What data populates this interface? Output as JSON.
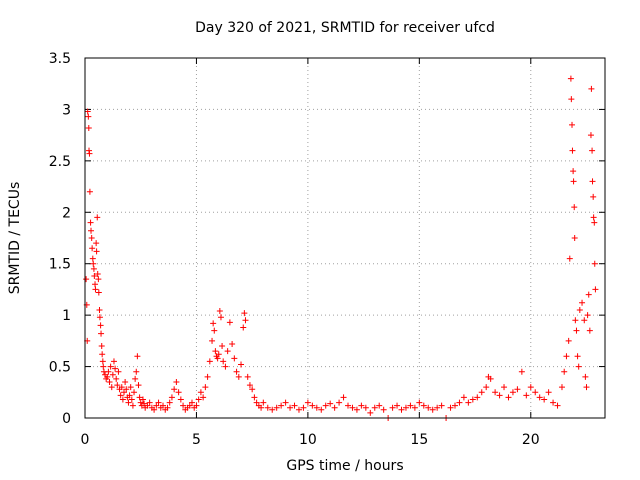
{
  "chart_data": {
    "type": "scatter",
    "title": "Day 320 of 2021, SRMTID for receiver ufcd",
    "xlabel": "GPS time / hours",
    "ylabel": "SRMTID / TECUs",
    "xlim": [
      0,
      23.33
    ],
    "ylim": [
      0,
      3.5
    ],
    "x_ticks": [
      0,
      5,
      10,
      15,
      20
    ],
    "x_tick_labels": [
      "0",
      "5",
      "10",
      "15",
      "20"
    ],
    "y_ticks": [
      0,
      0.5,
      1,
      1.5,
      2,
      2.5,
      3,
      3.5
    ],
    "y_tick_labels": [
      "0",
      "0.5",
      "1",
      "1.5",
      "2",
      "2.5",
      "3",
      "3.5"
    ],
    "grid": true,
    "marker": "+",
    "color": "#ff0000",
    "series": [
      {
        "name": "SRMTID",
        "points": [
          [
            0.05,
            1.35
          ],
          [
            0.08,
            1.1
          ],
          [
            0.1,
            0.75
          ],
          [
            0.12,
            2.98
          ],
          [
            0.15,
            2.93
          ],
          [
            0.17,
            2.82
          ],
          [
            0.18,
            2.6
          ],
          [
            0.2,
            2.57
          ],
          [
            0.22,
            2.2
          ],
          [
            0.25,
            1.9
          ],
          [
            0.27,
            1.82
          ],
          [
            0.3,
            1.75
          ],
          [
            0.32,
            1.65
          ],
          [
            0.35,
            1.55
          ],
          [
            0.37,
            1.5
          ],
          [
            0.4,
            1.45
          ],
          [
            0.42,
            1.38
          ],
          [
            0.45,
            1.3
          ],
          [
            0.47,
            1.25
          ],
          [
            0.5,
            1.7
          ],
          [
            0.52,
            1.62
          ],
          [
            0.55,
            1.95
          ],
          [
            0.57,
            1.4
          ],
          [
            0.6,
            1.35
          ],
          [
            0.62,
            1.22
          ],
          [
            0.65,
            1.05
          ],
          [
            0.67,
            0.98
          ],
          [
            0.7,
            0.9
          ],
          [
            0.72,
            0.82
          ],
          [
            0.75,
            0.7
          ],
          [
            0.77,
            0.62
          ],
          [
            0.8,
            0.55
          ],
          [
            0.82,
            0.5
          ],
          [
            0.85,
            0.45
          ],
          [
            0.9,
            0.42
          ],
          [
            0.95,
            0.38
          ],
          [
            1.0,
            0.4
          ],
          [
            1.05,
            0.45
          ],
          [
            1.1,
            0.35
          ],
          [
            1.15,
            0.5
          ],
          [
            1.2,
            0.3
          ],
          [
            1.25,
            0.42
          ],
          [
            1.3,
            0.55
          ],
          [
            1.35,
            0.48
          ],
          [
            1.4,
            0.38
          ],
          [
            1.45,
            0.32
          ],
          [
            1.5,
            0.45
          ],
          [
            1.55,
            0.28
          ],
          [
            1.6,
            0.22
          ],
          [
            1.65,
            0.3
          ],
          [
            1.7,
            0.18
          ],
          [
            1.75,
            0.25
          ],
          [
            1.8,
            0.35
          ],
          [
            1.85,
            0.28
          ],
          [
            1.9,
            0.2
          ],
          [
            1.95,
            0.15
          ],
          [
            2.0,
            0.22
          ],
          [
            2.05,
            0.3
          ],
          [
            2.1,
            0.18
          ],
          [
            2.15,
            0.12
          ],
          [
            2.2,
            0.25
          ],
          [
            2.25,
            0.38
          ],
          [
            2.3,
            0.45
          ],
          [
            2.35,
            0.6
          ],
          [
            2.4,
            0.32
          ],
          [
            2.45,
            0.2
          ],
          [
            2.5,
            0.15
          ],
          [
            2.55,
            0.12
          ],
          [
            2.6,
            0.18
          ],
          [
            2.65,
            0.14
          ],
          [
            2.7,
            0.1
          ],
          [
            2.8,
            0.12
          ],
          [
            2.9,
            0.15
          ],
          [
            3.0,
            0.1
          ],
          [
            3.1,
            0.08
          ],
          [
            3.2,
            0.12
          ],
          [
            3.3,
            0.15
          ],
          [
            3.4,
            0.1
          ],
          [
            3.5,
            0.12
          ],
          [
            3.6,
            0.08
          ],
          [
            3.7,
            0.1
          ],
          [
            3.8,
            0.15
          ],
          [
            3.9,
            0.2
          ],
          [
            4.0,
            0.28
          ],
          [
            4.1,
            0.35
          ],
          [
            4.2,
            0.25
          ],
          [
            4.3,
            0.18
          ],
          [
            4.4,
            0.12
          ],
          [
            4.5,
            0.08
          ],
          [
            4.6,
            0.1
          ],
          [
            4.7,
            0.12
          ],
          [
            4.8,
            0.15
          ],
          [
            4.9,
            0.1
          ],
          [
            5.0,
            0.12
          ],
          [
            5.1,
            0.18
          ],
          [
            5.2,
            0.25
          ],
          [
            5.3,
            0.2
          ],
          [
            5.4,
            0.3
          ],
          [
            5.5,
            0.4
          ],
          [
            5.6,
            0.55
          ],
          [
            5.7,
            0.75
          ],
          [
            5.75,
            0.92
          ],
          [
            5.8,
            0.85
          ],
          [
            5.85,
            0.65
          ],
          [
            5.9,
            0.6
          ],
          [
            5.95,
            0.58
          ],
          [
            6.0,
            0.62
          ],
          [
            6.05,
            1.04
          ],
          [
            6.1,
            0.98
          ],
          [
            6.15,
            0.7
          ],
          [
            6.2,
            0.55
          ],
          [
            6.3,
            0.5
          ],
          [
            6.4,
            0.65
          ],
          [
            6.5,
            0.93
          ],
          [
            6.6,
            0.72
          ],
          [
            6.7,
            0.58
          ],
          [
            6.8,
            0.45
          ],
          [
            6.9,
            0.4
          ],
          [
            7.0,
            0.52
          ],
          [
            7.1,
            0.88
          ],
          [
            7.15,
            1.02
          ],
          [
            7.2,
            0.95
          ],
          [
            7.3,
            0.4
          ],
          [
            7.4,
            0.32
          ],
          [
            7.5,
            0.28
          ],
          [
            7.6,
            0.2
          ],
          [
            7.7,
            0.15
          ],
          [
            7.8,
            0.12
          ],
          [
            7.9,
            0.1
          ],
          [
            8.0,
            0.15
          ],
          [
            8.2,
            0.1
          ],
          [
            8.4,
            0.08
          ],
          [
            8.6,
            0.1
          ],
          [
            8.8,
            0.12
          ],
          [
            9.0,
            0.15
          ],
          [
            9.2,
            0.1
          ],
          [
            9.4,
            0.12
          ],
          [
            9.6,
            0.08
          ],
          [
            9.8,
            0.1
          ],
          [
            10.0,
            0.15
          ],
          [
            10.2,
            0.12
          ],
          [
            10.4,
            0.1
          ],
          [
            10.6,
            0.08
          ],
          [
            10.8,
            0.12
          ],
          [
            11.0,
            0.14
          ],
          [
            11.2,
            0.1
          ],
          [
            11.4,
            0.15
          ],
          [
            11.6,
            0.2
          ],
          [
            11.8,
            0.12
          ],
          [
            12.0,
            0.1
          ],
          [
            12.2,
            0.08
          ],
          [
            12.4,
            0.12
          ],
          [
            12.6,
            0.1
          ],
          [
            12.8,
            0.05
          ],
          [
            13.0,
            0.1
          ],
          [
            13.2,
            0.12
          ],
          [
            13.4,
            0.08
          ],
          [
            13.6,
            0.0
          ],
          [
            13.8,
            0.1
          ],
          [
            14.0,
            0.12
          ],
          [
            14.2,
            0.08
          ],
          [
            14.4,
            0.1
          ],
          [
            14.6,
            0.12
          ],
          [
            14.8,
            0.1
          ],
          [
            15.0,
            0.15
          ],
          [
            15.2,
            0.12
          ],
          [
            15.4,
            0.1
          ],
          [
            15.6,
            0.08
          ],
          [
            15.8,
            0.1
          ],
          [
            16.0,
            0.12
          ],
          [
            16.2,
            0.0
          ],
          [
            16.4,
            0.1
          ],
          [
            16.6,
            0.12
          ],
          [
            16.8,
            0.15
          ],
          [
            17.0,
            0.2
          ],
          [
            17.2,
            0.15
          ],
          [
            17.4,
            0.18
          ],
          [
            17.6,
            0.2
          ],
          [
            17.8,
            0.25
          ],
          [
            18.0,
            0.3
          ],
          [
            18.1,
            0.4
          ],
          [
            18.2,
            0.38
          ],
          [
            18.4,
            0.25
          ],
          [
            18.6,
            0.22
          ],
          [
            18.8,
            0.3
          ],
          [
            19.0,
            0.2
          ],
          [
            19.2,
            0.25
          ],
          [
            19.4,
            0.28
          ],
          [
            19.6,
            0.45
          ],
          [
            19.8,
            0.22
          ],
          [
            20.0,
            0.3
          ],
          [
            20.2,
            0.25
          ],
          [
            20.4,
            0.2
          ],
          [
            20.6,
            0.18
          ],
          [
            20.8,
            0.25
          ],
          [
            21.0,
            0.15
          ],
          [
            21.2,
            0.12
          ],
          [
            21.4,
            0.3
          ],
          [
            21.5,
            0.45
          ],
          [
            21.6,
            0.6
          ],
          [
            21.7,
            0.75
          ],
          [
            21.75,
            1.55
          ],
          [
            21.8,
            3.3
          ],
          [
            21.82,
            3.1
          ],
          [
            21.85,
            2.85
          ],
          [
            21.87,
            2.6
          ],
          [
            21.9,
            2.4
          ],
          [
            21.92,
            2.3
          ],
          [
            21.95,
            2.05
          ],
          [
            21.97,
            1.75
          ],
          [
            22.0,
            0.95
          ],
          [
            22.05,
            0.85
          ],
          [
            22.1,
            0.6
          ],
          [
            22.15,
            0.5
          ],
          [
            22.2,
            1.05
          ],
          [
            22.3,
            1.12
          ],
          [
            22.4,
            0.95
          ],
          [
            22.45,
            0.4
          ],
          [
            22.5,
            0.3
          ],
          [
            22.55,
            1.0
          ],
          [
            22.6,
            1.2
          ],
          [
            22.65,
            0.85
          ],
          [
            22.7,
            2.75
          ],
          [
            22.72,
            3.2
          ],
          [
            22.75,
            2.6
          ],
          [
            22.77,
            2.3
          ],
          [
            22.8,
            2.15
          ],
          [
            22.82,
            1.95
          ],
          [
            22.85,
            1.9
          ],
          [
            22.87,
            1.5
          ],
          [
            22.9,
            1.25
          ]
        ]
      }
    ]
  }
}
